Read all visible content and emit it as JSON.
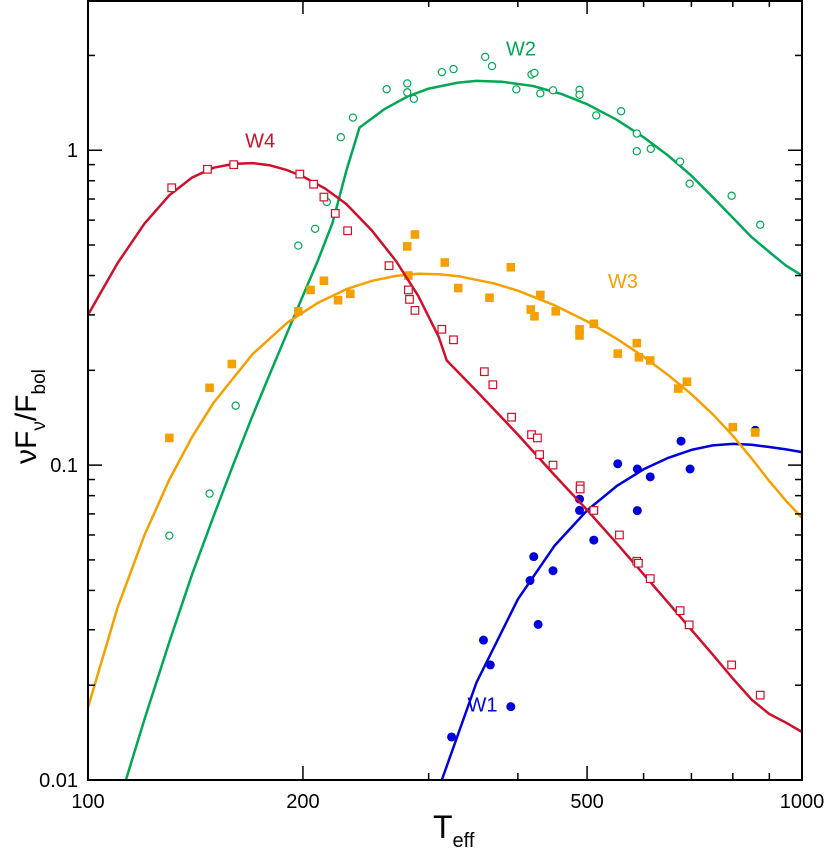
{
  "chart_data": {
    "type": "scatter",
    "x_scale": "log",
    "y_scale": "log",
    "xlim": [
      100,
      1000
    ],
    "ylim": [
      0.01,
      3
    ],
    "x_ticks": [
      {
        "value": 100,
        "label": "100"
      },
      {
        "value": 200,
        "label": "200"
      },
      {
        "value": 500,
        "label": "500"
      },
      {
        "value": 1000,
        "label": "1000"
      }
    ],
    "y_ticks": [
      {
        "value": 0.01,
        "label": "0.01"
      },
      {
        "value": 0.1,
        "label": "0.1"
      },
      {
        "value": 1,
        "label": "1"
      }
    ],
    "xlabel": {
      "main": "T",
      "sub": "eff"
    },
    "ylabel": {
      "nu": "ν",
      "F": "F",
      "sub_nu": "ν",
      "slash": "/F",
      "sub_bol": "bol"
    },
    "grid": false,
    "series": [
      {
        "name": "W1",
        "color": "#0000dd",
        "marker": "filled-circle",
        "label_pos": [
          340,
          0.0165
        ],
        "points": [
          [
            323,
            0.0137
          ],
          [
            358,
            0.0278
          ],
          [
            366,
            0.0232
          ],
          [
            391,
            0.0171
          ],
          [
            416,
            0.043
          ],
          [
            421,
            0.0512
          ],
          [
            427,
            0.0312
          ],
          [
            448,
            0.0462
          ],
          [
            488,
            0.0718
          ],
          [
            488,
            0.078
          ],
          [
            511,
            0.0578
          ],
          [
            552,
            0.101
          ],
          [
            588,
            0.0972
          ],
          [
            588,
            0.0717
          ],
          [
            613,
            0.0918
          ],
          [
            677,
            0.1192
          ],
          [
            697,
            0.0972
          ],
          [
            860,
            0.129
          ]
        ],
        "curve": [
          [
            313,
            0.01
          ],
          [
            350,
            0.0204
          ],
          [
            400,
            0.0375
          ],
          [
            450,
            0.0554
          ],
          [
            500,
            0.0718
          ],
          [
            550,
            0.0858
          ],
          [
            600,
            0.097
          ],
          [
            650,
            0.1055
          ],
          [
            700,
            0.1118
          ],
          [
            750,
            0.1155
          ],
          [
            800,
            0.1168
          ],
          [
            850,
            0.116
          ],
          [
            900,
            0.1142
          ],
          [
            950,
            0.1122
          ],
          [
            1000,
            0.11
          ]
        ]
      },
      {
        "name": "W2",
        "color": "#00a856",
        "marker": "open-circle",
        "label_pos": [
          385,
          2.0
        ],
        "points": [
          [
            130,
            0.0597
          ],
          [
            148,
            0.0812
          ],
          [
            161,
            0.1545
          ],
          [
            197,
            0.498
          ],
          [
            208,
            0.563
          ],
          [
            216,
            0.685
          ],
          [
            226,
            1.1
          ],
          [
            235,
            1.27
          ],
          [
            262,
            1.562
          ],
          [
            280,
            1.63
          ],
          [
            280,
            1.527
          ],
          [
            286,
            1.456
          ],
          [
            313,
            1.77
          ],
          [
            325,
            1.81
          ],
          [
            360,
            1.98
          ],
          [
            368,
            1.85
          ],
          [
            398,
            1.56
          ],
          [
            418,
            1.74
          ],
          [
            422,
            1.76
          ],
          [
            430,
            1.515
          ],
          [
            448,
            1.55
          ],
          [
            488,
            1.555
          ],
          [
            488,
            1.5
          ],
          [
            515,
            1.29
          ],
          [
            558,
            1.33
          ],
          [
            587,
            0.993
          ],
          [
            587,
            1.13
          ],
          [
            614,
            1.01
          ],
          [
            675,
            0.92
          ],
          [
            696,
            0.783
          ],
          [
            797,
            0.717
          ],
          [
            874,
            0.58
          ]
        ],
        "curve": [
          [
            113,
            0.01
          ],
          [
            120,
            0.0156
          ],
          [
            130,
            0.0275
          ],
          [
            140,
            0.0452
          ],
          [
            150,
            0.069
          ],
          [
            160,
            0.1013
          ],
          [
            170,
            0.1434
          ],
          [
            180,
            0.1963
          ],
          [
            190,
            0.2623
          ],
          [
            200,
            0.345
          ],
          [
            210,
            0.448
          ],
          [
            220,
            0.588
          ],
          [
            230,
            0.86
          ],
          [
            240,
            1.18
          ],
          [
            260,
            1.35
          ],
          [
            280,
            1.48
          ],
          [
            300,
            1.57
          ],
          [
            330,
            1.64
          ],
          [
            350,
            1.66
          ],
          [
            380,
            1.65
          ],
          [
            420,
            1.6
          ],
          [
            460,
            1.51
          ],
          [
            500,
            1.4
          ],
          [
            550,
            1.25
          ],
          [
            600,
            1.1
          ],
          [
            650,
            0.96
          ],
          [
            700,
            0.83
          ],
          [
            750,
            0.71
          ],
          [
            800,
            0.61
          ],
          [
            850,
            0.53
          ],
          [
            900,
            0.475
          ],
          [
            950,
            0.43
          ],
          [
            1000,
            0.4
          ]
        ]
      },
      {
        "name": "W3",
        "color": "#f5a000",
        "marker": "filled-square",
        "label_pos": [
          535,
          0.365
        ],
        "points": [
          [
            130,
            0.122
          ],
          [
            148,
            0.176
          ],
          [
            159,
            0.2095
          ],
          [
            197,
            0.308
          ],
          [
            205,
            0.36
          ],
          [
            214,
            0.385
          ],
          [
            224,
            0.334
          ],
          [
            233,
            0.35
          ],
          [
            264,
            0.43
          ],
          [
            280,
            0.495
          ],
          [
            281,
            0.4
          ],
          [
            287,
            0.54
          ],
          [
            316,
            0.44
          ],
          [
            330,
            0.365
          ],
          [
            365,
            0.34
          ],
          [
            391,
            0.425
          ],
          [
            417,
            0.312
          ],
          [
            422,
            0.297
          ],
          [
            430,
            0.347
          ],
          [
            452,
            0.308
          ],
          [
            488,
            0.27
          ],
          [
            488,
            0.258
          ],
          [
            511,
            0.281
          ],
          [
            552,
            0.226
          ],
          [
            587,
            0.244
          ],
          [
            591,
            0.22
          ],
          [
            613,
            0.215
          ],
          [
            671,
            0.175
          ],
          [
            690,
            0.184
          ],
          [
            800,
            0.132
          ],
          [
            860,
            0.127
          ]
        ],
        "curve": [
          [
            100,
            0.017
          ],
          [
            110,
            0.0353
          ],
          [
            120,
            0.06
          ],
          [
            130,
            0.09
          ],
          [
            140,
            0.1232
          ],
          [
            150,
            0.158
          ],
          [
            170,
            0.225
          ],
          [
            190,
            0.283
          ],
          [
            210,
            0.328
          ],
          [
            230,
            0.362
          ],
          [
            250,
            0.385
          ],
          [
            270,
            0.399
          ],
          [
            290,
            0.405
          ],
          [
            310,
            0.404
          ],
          [
            330,
            0.398
          ],
          [
            370,
            0.378
          ],
          [
            400,
            0.358
          ],
          [
            450,
            0.322
          ],
          [
            500,
            0.286
          ],
          [
            550,
            0.252
          ],
          [
            600,
            0.221
          ],
          [
            650,
            0.193
          ],
          [
            700,
            0.168
          ],
          [
            750,
            0.145
          ],
          [
            800,
            0.124
          ],
          [
            850,
            0.105
          ],
          [
            900,
            0.089
          ],
          [
            950,
            0.077
          ],
          [
            1000,
            0.068
          ]
        ]
      },
      {
        "name": "W4",
        "color": "#d0102a",
        "marker": "open-square",
        "label_pos": [
          166,
          1.02
        ],
        "points": [
          [
            131,
            0.76
          ],
          [
            147,
            0.87
          ],
          [
            160,
            0.9
          ],
          [
            198,
            0.84
          ],
          [
            207,
            0.78
          ],
          [
            214,
            0.71
          ],
          [
            222,
            0.63
          ],
          [
            231,
            0.555
          ],
          [
            264,
            0.43
          ],
          [
            281,
            0.36
          ],
          [
            282,
            0.336
          ],
          [
            287,
            0.31
          ],
          [
            313,
            0.27
          ],
          [
            325,
            0.25
          ],
          [
            359,
            0.198
          ],
          [
            369,
            0.18
          ],
          [
            392,
            0.142
          ],
          [
            418,
            0.125
          ],
          [
            426,
            0.122
          ],
          [
            429,
            0.108
          ],
          [
            448,
            0.1
          ],
          [
            489,
            0.086
          ],
          [
            489,
            0.084
          ],
          [
            511,
            0.0718
          ],
          [
            555,
            0.06
          ],
          [
            587,
            0.0495
          ],
          [
            590,
            0.0488
          ],
          [
            613,
            0.0436
          ],
          [
            675,
            0.0345
          ],
          [
            695,
            0.0311
          ],
          [
            797,
            0.0232
          ],
          [
            874,
            0.0186
          ]
        ],
        "curve": [
          [
            100,
            0.3
          ],
          [
            110,
            0.438
          ],
          [
            120,
            0.585
          ],
          [
            130,
            0.72
          ],
          [
            140,
            0.82
          ],
          [
            150,
            0.88
          ],
          [
            160,
            0.905
          ],
          [
            170,
            0.91
          ],
          [
            180,
            0.895
          ],
          [
            190,
            0.865
          ],
          [
            200,
            0.825
          ],
          [
            215,
            0.755
          ],
          [
            230,
            0.675
          ],
          [
            250,
            0.555
          ],
          [
            270,
            0.445
          ],
          [
            290,
            0.345
          ],
          [
            310,
            0.255
          ],
          [
            318,
            0.215
          ],
          [
            350,
            0.172
          ],
          [
            400,
            0.125
          ],
          [
            450,
            0.093
          ],
          [
            500,
            0.072
          ],
          [
            550,
            0.0565
          ],
          [
            600,
            0.045
          ],
          [
            650,
            0.0365
          ],
          [
            700,
            0.03
          ],
          [
            750,
            0.025
          ],
          [
            800,
            0.021
          ],
          [
            850,
            0.018
          ],
          [
            900,
            0.0162
          ],
          [
            950,
            0.0152
          ],
          [
            1000,
            0.0142
          ]
        ]
      }
    ]
  }
}
